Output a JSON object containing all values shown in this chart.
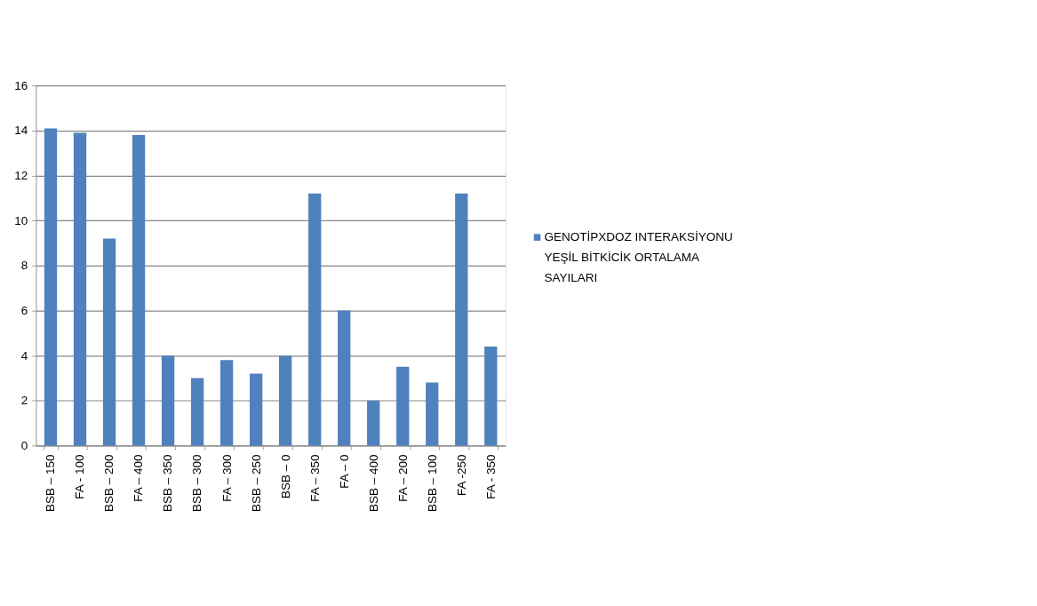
{
  "chart_data": {
    "type": "bar",
    "categories": [
      "BSB – 150",
      "FA - 100",
      "BSB – 200",
      "FA – 400",
      "BSB – 350",
      "BSB – 300",
      "FA – 300",
      "BSB – 250",
      "BSB – 0",
      "FA – 350",
      "FA – 0",
      "BSB – 400",
      "FA – 200",
      "BSB – 100",
      "FA -250",
      "FA - 350"
    ],
    "series": [
      {
        "name": "GENOTİPXDOZ INTERAKSİYONU YEŞİL BİTKİCİK ORTALAMA SAYILARI",
        "color": "#4f81bd",
        "values": [
          14.1,
          13.9,
          9.2,
          13.8,
          4.0,
          3.0,
          3.8,
          3.2,
          4.0,
          11.2,
          6.0,
          2.0,
          3.5,
          2.8,
          11.2,
          4.4
        ]
      }
    ],
    "ylim": [
      0,
      16
    ],
    "yticks": [
      0,
      2,
      4,
      6,
      8,
      10,
      12,
      14,
      16
    ],
    "grid": "y",
    "legend": "right"
  }
}
